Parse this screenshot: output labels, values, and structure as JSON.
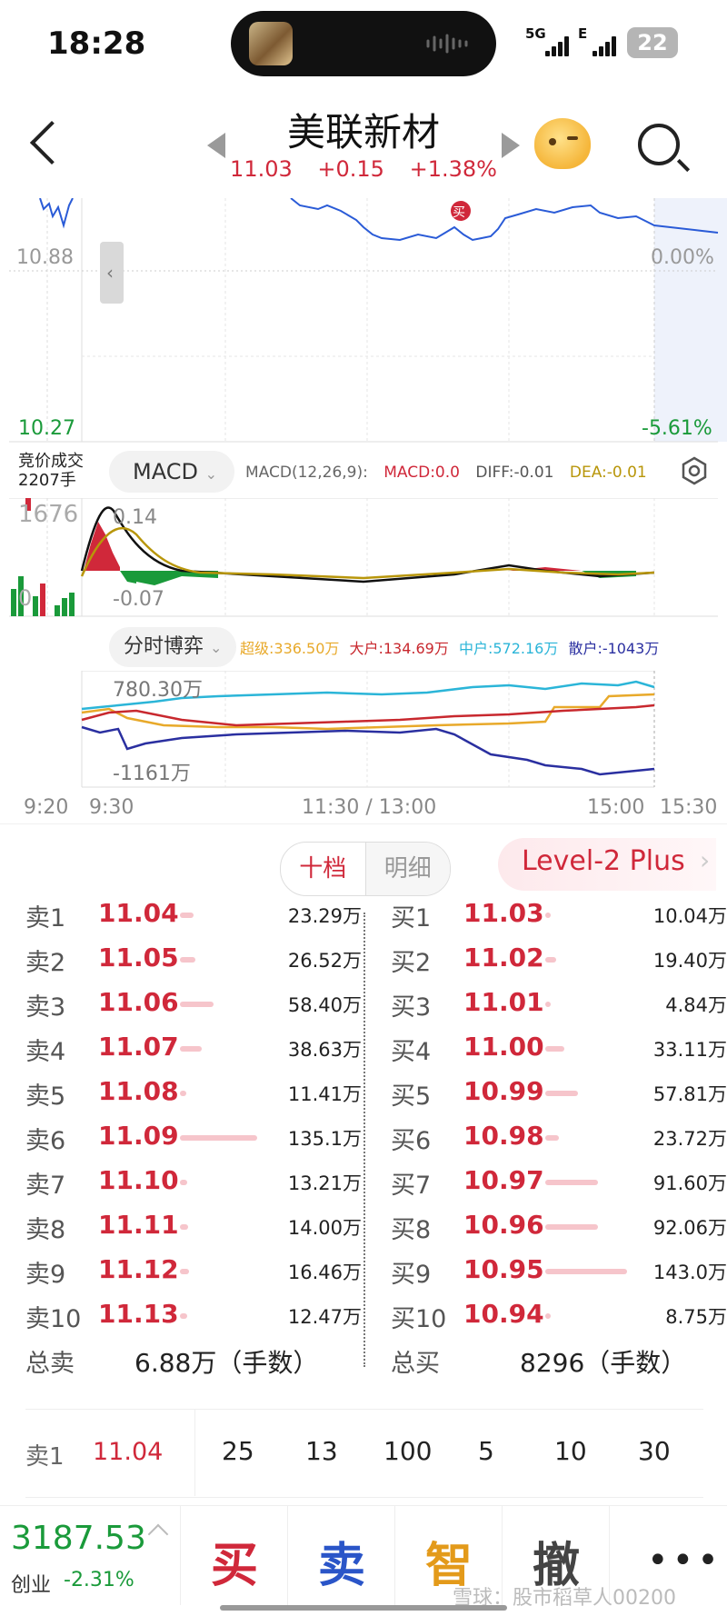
{
  "status_bar": {
    "time": "18:28",
    "net1": "5G",
    "net2": "E",
    "battery": "22"
  },
  "header": {
    "stock_name": "美联新材",
    "price": "11.03",
    "change": "+0.15",
    "change_pct": "+1.38%"
  },
  "price_chart": {
    "y_mid_label": "10.88",
    "y_low_label": "10.27",
    "pct_mid_label": "0.00%",
    "pct_low_label": "-5.61%",
    "buy_marker": "买",
    "colors": {
      "line": "#2a5bd7",
      "up": "#d0283a",
      "down": "#1a9a3a"
    }
  },
  "indicator": {
    "auction_line1": "竞价成交",
    "auction_line2": "2207手",
    "selected": "MACD",
    "params": "MACD(12,26,9):",
    "macd": "MACD:0.0",
    "diff": "DIFF:-0.01",
    "dea": "DEA:-0.01",
    "auction_max": "1676",
    "auction_zero": "0",
    "top_label": "0.14",
    "bottom_label": "-0.07"
  },
  "fenshi_boyi": {
    "selected": "分时博弈",
    "super": "超级:336.50万",
    "large": "大户:134.69万",
    "mid": "中户:572.16万",
    "retail": "散户:-1043万",
    "top_label": "780.30万",
    "bottom_label": "-1161万",
    "colors": {
      "super": "#e8a92a",
      "large": "#c8282e",
      "mid": "#2bb5d8",
      "retail": "#2a2fa0"
    }
  },
  "time_axis": {
    "t1": "9:20",
    "t2": "9:30",
    "t3": "11:30 / 13:00",
    "t4": "15:00",
    "t5": "15:30"
  },
  "order_book": {
    "tab_ten": "十档",
    "tab_detail": "明细",
    "level2": "Level-2 Plus",
    "asks": [
      {
        "label": "卖1",
        "price": "11.04",
        "vol": "23.29万",
        "v": 23.29
      },
      {
        "label": "卖2",
        "price": "11.05",
        "vol": "26.52万",
        "v": 26.52
      },
      {
        "label": "卖3",
        "price": "11.06",
        "vol": "58.40万",
        "v": 58.4
      },
      {
        "label": "卖4",
        "price": "11.07",
        "vol": "38.63万",
        "v": 38.63
      },
      {
        "label": "卖5",
        "price": "11.08",
        "vol": "11.41万",
        "v": 11.41
      },
      {
        "label": "卖6",
        "price": "11.09",
        "vol": "135.1万",
        "v": 135.1
      },
      {
        "label": "卖7",
        "price": "11.10",
        "vol": "13.21万",
        "v": 13.21
      },
      {
        "label": "卖8",
        "price": "11.11",
        "vol": "14.00万",
        "v": 14.0
      },
      {
        "label": "卖9",
        "price": "11.12",
        "vol": "16.46万",
        "v": 16.46
      },
      {
        "label": "卖10",
        "price": "11.13",
        "vol": "12.47万",
        "v": 12.47
      }
    ],
    "bids": [
      {
        "label": "买1",
        "price": "11.03",
        "vol": "10.04万",
        "v": 10.04
      },
      {
        "label": "买2",
        "price": "11.02",
        "vol": "19.40万",
        "v": 19.4
      },
      {
        "label": "买3",
        "price": "11.01",
        "vol": "4.84万",
        "v": 4.84
      },
      {
        "label": "买4",
        "price": "11.00",
        "vol": "33.11万",
        "v": 33.11
      },
      {
        "label": "买5",
        "price": "10.99",
        "vol": "57.81万",
        "v": 57.81
      },
      {
        "label": "买6",
        "price": "10.98",
        "vol": "23.72万",
        "v": 23.72
      },
      {
        "label": "买7",
        "price": "10.97",
        "vol": "91.60万",
        "v": 91.6
      },
      {
        "label": "买8",
        "price": "10.96",
        "vol": "92.06万",
        "v": 92.06
      },
      {
        "label": "买9",
        "price": "10.95",
        "vol": "143.0万",
        "v": 143.0
      },
      {
        "label": "买10",
        "price": "10.94",
        "vol": "8.75万",
        "v": 8.75
      }
    ],
    "total_sell_label": "总卖",
    "total_sell": "6.88万（手数）",
    "total_buy_label": "总买",
    "total_buy": "8296（手数）"
  },
  "quick_qty": {
    "label": "卖1",
    "price": "11.04",
    "options": [
      "25",
      "13",
      "100",
      "5",
      "10",
      "30"
    ]
  },
  "bottom": {
    "index_value": "3187.53",
    "index_name": "创业",
    "index_change": "-2.31%",
    "buy": "买",
    "sell": "卖",
    "smart": "智",
    "cancel": "撤",
    "watermark": "雪球：股市稻草人00200"
  }
}
